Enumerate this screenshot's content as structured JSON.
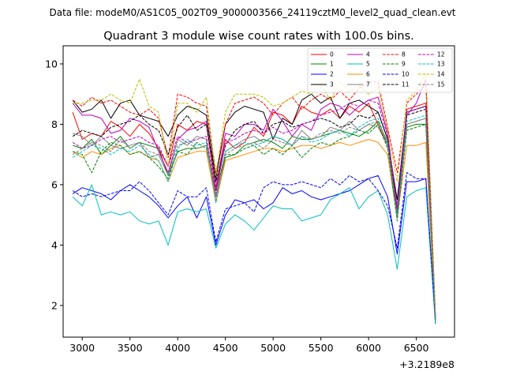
{
  "chart_data": {
    "type": "line",
    "suptitle": "Data file: modeM0/AS1C05_002T09_9000003566_24119cztM0_level2_quad_clean.evt",
    "title": "Quadrant 3 module wise count rates with 100.0s bins.",
    "xlabel": "",
    "ylabel": "",
    "x_offset_label": "+3.2189e8",
    "xlim": [
      2800,
      6900
    ],
    "ylim": [
      0.95,
      10.6
    ],
    "xticks": [
      3000,
      3500,
      4000,
      4500,
      5000,
      5500,
      6000,
      6500
    ],
    "yticks": [
      2,
      4,
      6,
      8,
      10
    ],
    "x": [
      2900,
      3000,
      3100,
      3200,
      3300,
      3400,
      3500,
      3600,
      3700,
      3800,
      3900,
      4000,
      4100,
      4200,
      4300,
      4400,
      4500,
      4600,
      4700,
      4800,
      4900,
      5000,
      5100,
      5200,
      5300,
      5400,
      5500,
      5600,
      5700,
      5800,
      5900,
      6000,
      6100,
      6200,
      6300,
      6400,
      6500,
      6600,
      6700
    ],
    "series": [
      {
        "name": "0",
        "color": "#ff0000",
        "dash": "solid",
        "values": [
          8.4,
          7.5,
          7.7,
          7.6,
          8.1,
          7.9,
          7.6,
          8.0,
          7.7,
          7.2,
          6.6,
          8.0,
          7.8,
          8.1,
          8.0,
          5.8,
          7.5,
          7.2,
          7.4,
          7.9,
          7.6,
          8.4,
          8.3,
          8.0,
          8.6,
          8.4,
          8.3,
          8.5,
          8.2,
          8.6,
          8.4,
          8.7,
          8.0,
          7.3,
          5.1,
          8.5,
          8.6,
          8.7,
          1.4
        ]
      },
      {
        "name": "1",
        "color": "#008000",
        "dash": "solid",
        "values": [
          7.3,
          7.2,
          7.5,
          7.0,
          7.3,
          7.6,
          7.2,
          7.4,
          7.3,
          7.2,
          6.3,
          7.1,
          7.2,
          7.2,
          7.3,
          5.6,
          6.9,
          7.0,
          7.3,
          7.4,
          7.5,
          7.4,
          7.2,
          7.6,
          7.5,
          7.5,
          7.6,
          7.7,
          7.8,
          7.7,
          7.6,
          7.8,
          8.1,
          7.4,
          5.0,
          7.9,
          8.0,
          8.0,
          1.5
        ]
      },
      {
        "name": "2",
        "color": "#0000ff",
        "dash": "solid",
        "values": [
          5.7,
          5.9,
          5.8,
          5.7,
          5.5,
          5.8,
          6.0,
          5.8,
          5.6,
          5.3,
          4.9,
          5.3,
          5.6,
          4.9,
          5.6,
          4.0,
          5.0,
          5.5,
          5.4,
          5.5,
          5.2,
          5.4,
          5.9,
          5.7,
          5.8,
          5.6,
          5.5,
          5.6,
          5.7,
          5.8,
          6.0,
          6.2,
          6.3,
          5.6,
          3.7,
          6.1,
          6.1,
          6.2,
          1.4
        ]
      },
      {
        "name": "3",
        "color": "#000000",
        "dash": "solid",
        "values": [
          8.8,
          8.4,
          8.5,
          8.8,
          8.2,
          8.7,
          8.8,
          8.3,
          8.2,
          8.1,
          7.6,
          8.3,
          8.6,
          8.5,
          8.3,
          6.2,
          8.0,
          8.4,
          8.6,
          8.5,
          8.4,
          7.5,
          8.2,
          8.0,
          8.8,
          9.0,
          8.7,
          8.9,
          8.2,
          8.7,
          8.8,
          8.6,
          8.4,
          7.5,
          5.5,
          8.4,
          8.5,
          8.6,
          1.6
        ]
      },
      {
        "name": "4",
        "color": "#bf00bf",
        "dash": "solid",
        "values": [
          8.7,
          8.3,
          8.3,
          8.2,
          7.7,
          7.8,
          8.2,
          8.1,
          7.9,
          7.1,
          6.4,
          7.5,
          7.8,
          7.9,
          8.1,
          5.9,
          7.7,
          7.6,
          8.0,
          8.0,
          7.8,
          8.5,
          8.1,
          7.6,
          8.0,
          7.8,
          8.5,
          8.7,
          8.6,
          8.3,
          8.6,
          8.8,
          8.9,
          7.7,
          5.2,
          8.3,
          8.7,
          9.5,
          1.7
        ]
      },
      {
        "name": "5",
        "color": "#00bfbf",
        "dash": "solid",
        "values": [
          5.6,
          5.3,
          6.0,
          5.0,
          5.1,
          5.0,
          5.1,
          4.8,
          4.7,
          4.8,
          4.0,
          5.1,
          5.2,
          5.1,
          5.2,
          3.9,
          4.7,
          5.0,
          4.8,
          4.5,
          4.9,
          5.3,
          5.2,
          5.2,
          4.8,
          4.9,
          5.0,
          5.5,
          5.7,
          5.9,
          5.2,
          5.6,
          5.8,
          5.0,
          3.2,
          5.6,
          5.8,
          5.9,
          1.4
        ]
      },
      {
        "name": "6",
        "color": "#ff8c00",
        "dash": "solid",
        "values": [
          7.1,
          6.9,
          7.1,
          7.0,
          7.2,
          7.3,
          7.0,
          7.1,
          6.9,
          6.8,
          6.1,
          6.9,
          7.0,
          7.1,
          7.1,
          5.4,
          6.8,
          6.9,
          7.0,
          7.1,
          7.2,
          7.2,
          7.1,
          7.2,
          7.3,
          7.3,
          7.2,
          7.3,
          7.4,
          7.3,
          7.4,
          7.5,
          7.4,
          7.0,
          4.9,
          7.3,
          7.3,
          7.4,
          1.5
        ]
      },
      {
        "name": "7",
        "color": "#808080",
        "dash": "solid",
        "values": [
          7.7,
          7.6,
          7.3,
          7.6,
          7.3,
          7.2,
          7.3,
          7.4,
          6.9,
          7.0,
          6.3,
          7.5,
          7.3,
          7.6,
          7.5,
          5.6,
          7.1,
          7.3,
          7.5,
          7.6,
          7.4,
          7.6,
          7.5,
          7.3,
          7.8,
          7.5,
          7.6,
          7.9,
          7.8,
          8.1,
          7.8,
          8.0,
          7.9,
          7.3,
          4.9,
          8.0,
          8.1,
          8.2,
          1.6
        ]
      },
      {
        "name": "8",
        "color": "#ff0000",
        "dash": "dashed",
        "values": [
          8.8,
          8.6,
          8.9,
          8.7,
          8.8,
          8.6,
          8.4,
          8.3,
          8.5,
          8.2,
          6.9,
          9.0,
          8.9,
          8.7,
          8.6,
          6.4,
          8.0,
          8.7,
          8.8,
          8.9,
          8.7,
          8.3,
          8.7,
          8.9,
          8.5,
          8.8,
          9.0,
          8.8,
          9.1,
          8.8,
          9.2,
          9.4,
          9.4,
          7.9,
          6.4,
          8.7,
          9.0,
          9.3,
          1.6
        ]
      },
      {
        "name": "9",
        "color": "#008000",
        "dash": "dashed",
        "values": [
          7.1,
          7.0,
          6.4,
          7.1,
          7.4,
          7.3,
          7.0,
          7.1,
          6.9,
          6.6,
          6.2,
          7.1,
          7.0,
          7.4,
          7.2,
          5.8,
          7.0,
          7.0,
          7.2,
          7.3,
          7.0,
          7.2,
          7.0,
          7.3,
          6.9,
          7.2,
          7.4,
          7.3,
          7.5,
          7.6,
          7.8,
          7.7,
          8.0,
          7.2,
          4.8,
          7.8,
          7.9,
          8.0,
          1.5
        ]
      },
      {
        "name": "10",
        "color": "#0000ff",
        "dash": "dashed",
        "values": [
          5.8,
          5.6,
          5.7,
          5.6,
          5.7,
          5.8,
          5.8,
          6.1,
          5.8,
          5.4,
          5.0,
          5.8,
          5.6,
          5.6,
          5.9,
          4.1,
          5.2,
          5.3,
          5.4,
          5.1,
          5.9,
          6.1,
          6.0,
          6.0,
          6.1,
          6.0,
          5.9,
          6.2,
          6.0,
          6.3,
          6.1,
          6.2,
          5.8,
          5.3,
          3.9,
          6.4,
          6.2,
          6.2,
          1.5
        ]
      },
      {
        "name": "11",
        "color": "#000000",
        "dash": "dashed",
        "values": [
          7.6,
          7.8,
          7.7,
          7.6,
          7.9,
          8.0,
          8.1,
          8.3,
          8.0,
          7.8,
          7.0,
          7.9,
          8.3,
          7.8,
          8.0,
          6.1,
          7.3,
          7.8,
          8.0,
          8.1,
          7.7,
          8.0,
          8.1,
          7.9,
          8.0,
          8.1,
          8.2,
          8.1,
          7.9,
          8.0,
          8.3,
          8.2,
          8.4,
          7.5,
          5.0,
          8.3,
          8.4,
          8.5,
          1.6
        ]
      },
      {
        "name": "12",
        "color": "#bf00bf",
        "dash": "dashed",
        "values": [
          7.4,
          7.2,
          7.3,
          7.5,
          7.6,
          7.4,
          7.5,
          7.6,
          7.4,
          7.3,
          6.6,
          7.6,
          7.4,
          7.5,
          7.6,
          5.7,
          7.4,
          7.5,
          7.7,
          7.8,
          7.7,
          7.9,
          7.7,
          7.8,
          8.0,
          8.1,
          8.3,
          8.4,
          8.5,
          8.7,
          8.6,
          8.8,
          8.7,
          7.6,
          5.3,
          8.4,
          8.5,
          8.6,
          1.6
        ]
      },
      {
        "name": "13",
        "color": "#00bfbf",
        "dash": "dashed",
        "values": [
          6.9,
          7.1,
          7.3,
          7.2,
          7.0,
          7.2,
          7.1,
          7.3,
          7.0,
          6.8,
          6.1,
          7.2,
          7.5,
          7.3,
          7.4,
          5.4,
          7.1,
          7.3,
          7.4,
          7.3,
          7.4,
          7.6,
          7.5,
          7.3,
          7.6,
          7.4,
          7.5,
          7.7,
          7.8,
          7.6,
          7.9,
          8.1,
          8.2,
          7.3,
          5.0,
          8.1,
          8.2,
          8.3,
          1.5
        ]
      },
      {
        "name": "14",
        "color": "#bfbf00",
        "dash": "dashed",
        "values": [
          8.7,
          8.7,
          8.8,
          8.8,
          9.0,
          8.8,
          8.7,
          9.5,
          8.6,
          8.4,
          6.6,
          8.7,
          8.7,
          8.4,
          8.9,
          6.3,
          8.4,
          9.0,
          9.0,
          9.0,
          8.9,
          8.6,
          8.7,
          8.9,
          9.1,
          9.0,
          9.3,
          8.8,
          9.4,
          9.1,
          9.3,
          9.0,
          9.2,
          7.8,
          6.1,
          8.8,
          9.1,
          9.7,
          1.7
        ]
      },
      {
        "name": "15",
        "color": "#808080",
        "dash": "dashed",
        "values": [
          7.0,
          7.2,
          7.4,
          7.3,
          7.1,
          7.5,
          7.2,
          7.4,
          7.1,
          7.0,
          6.3,
          7.3,
          7.4,
          7.2,
          7.3,
          5.5,
          7.0,
          7.2,
          7.3,
          7.4,
          7.2,
          7.5,
          7.4,
          7.3,
          7.6,
          7.5,
          7.7,
          7.8,
          7.7,
          7.9,
          7.8,
          8.0,
          8.1,
          7.4,
          4.9,
          8.0,
          8.1,
          8.2,
          1.6
        ]
      }
    ]
  }
}
